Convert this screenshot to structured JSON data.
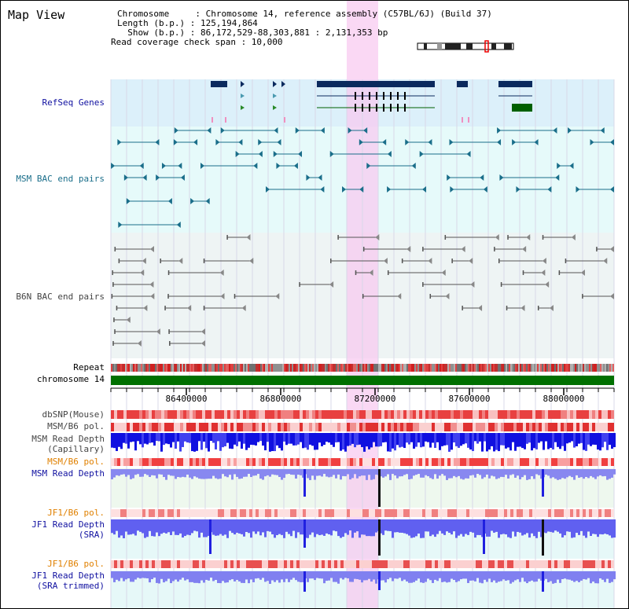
{
  "app": {
    "title": "Map View"
  },
  "info": {
    "chromosome_line": "Chromosome     : Chromosome 14, reference assembly (C57BL/6J) (Build 37)",
    "length_line": "Length (b.p.) : 125,194,864",
    "show_line": "  Show (b.p.) : 86,172,529-88,303,881 : 2,131,353 bp",
    "span_line": "Read coverage check span : 10,000"
  },
  "tracks": {
    "refseq": "RefSeq Genes",
    "msm_bac": "MSM BAC end pairs",
    "b6n_bac": "B6N BAC end pairs",
    "repeat": "Repeat",
    "chromosome": "chromosome 14",
    "dbsnp": "dbSNP(Mouse)",
    "msm_b6_pol_1": "MSM/B6 pol.",
    "msm_read_depth_cap_1": "MSM Read Depth",
    "msm_read_depth_cap_2": "(Capillary)",
    "msm_b6_pol_2": "MSM/B6 pol.",
    "msm_read_depth_sra": "MSM Read Depth",
    "jf1_b6_pol_1": "JF1/B6 pol.",
    "jf1_read_depth_1": "JF1 Read Depth",
    "jf1_read_depth_2": "(SRA)",
    "jf1_b6_pol_2": "JF1/B6 pol.",
    "jf1_read_depth_trim_1": "JF1 Read Depth",
    "jf1_read_depth_trim_2": "(SRA trimmed)"
  },
  "axis": {
    "ticks": [
      "86400000",
      "86800000",
      "87200000",
      "87600000",
      "88000000"
    ]
  },
  "colors": {
    "refseq_bg": "#dcf0fa",
    "bac_bg": "#e6fafa",
    "b6n_bg": "#eef4f4",
    "highlight": "#f8c8f0",
    "gene": "#0b2a5e",
    "msm_bac": "#1a6e8a",
    "b6n_bac": "#555555",
    "chromosome": "#007000",
    "label_blue": "#1010a0",
    "label_teal": "#1a6e8a",
    "label_orange": "#e08000"
  }
}
